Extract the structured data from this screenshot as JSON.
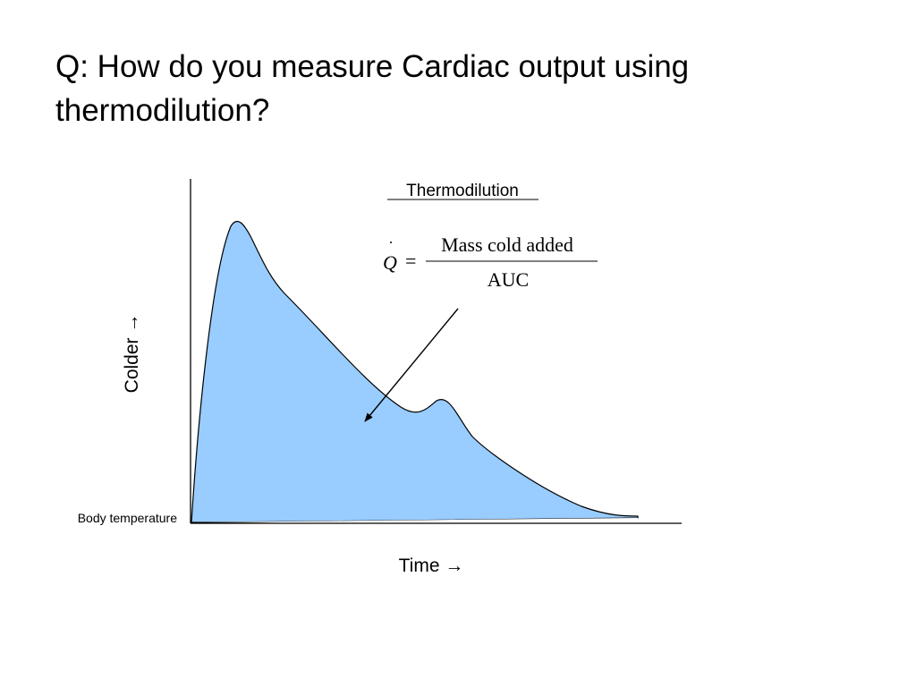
{
  "slide": {
    "question": "Q: How do you measure Cardiac output using thermodilution?"
  },
  "diagram": {
    "title": "Thermodilution",
    "y_axis_label": "Colder →",
    "x_axis_label": "Time →",
    "baseline_label": "Body temperature",
    "equation": {
      "lhs": "Q",
      "equals": "=",
      "numerator": "Mass cold added",
      "denominator": "AUC"
    },
    "colors": {
      "curve_fill": "#99ccff",
      "line": "#000000"
    }
  }
}
